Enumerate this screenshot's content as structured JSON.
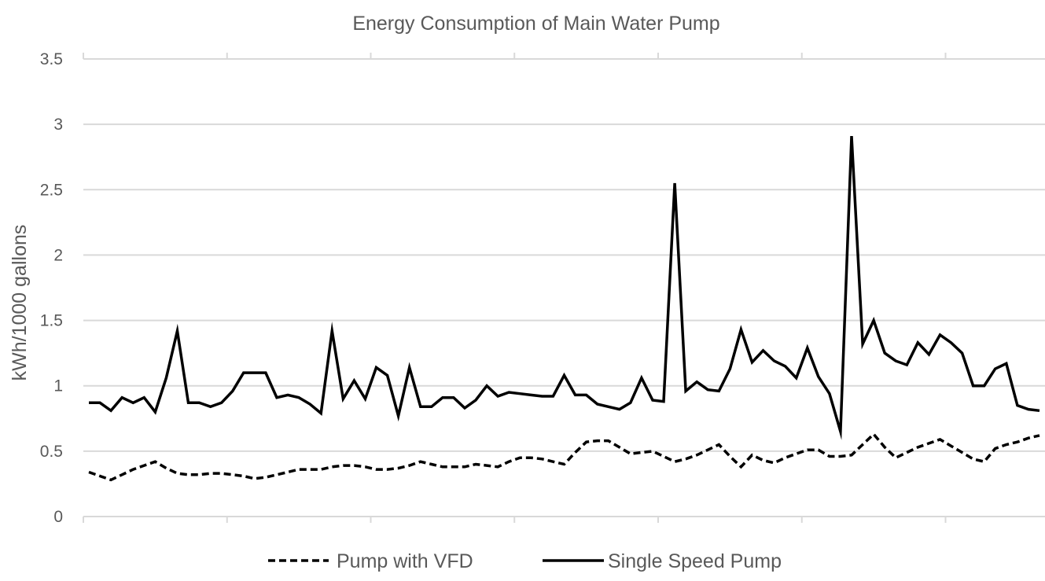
{
  "chart_data": {
    "type": "line",
    "title": "Energy Consumption of Main Water Pump",
    "xlabel": "",
    "ylabel": "kWh/1000 gallons",
    "ylim": [
      0,
      3.5
    ],
    "yticks": [
      "0",
      "0.5",
      "1",
      "1.5",
      "2",
      "2.5",
      "3",
      "3.5"
    ],
    "ytick_values": [
      0,
      0.5,
      1,
      1.5,
      2,
      2.5,
      3,
      3.5
    ],
    "x_count": 87,
    "x_major_tick_every": 13,
    "grid": true,
    "legend_position": "bottom",
    "series": [
      {
        "name": "Pump with VFD",
        "style": "dashed",
        "color": "#000000",
        "values": [
          0.34,
          0.31,
          0.28,
          0.32,
          0.36,
          0.39,
          0.42,
          0.37,
          0.33,
          0.32,
          0.32,
          0.33,
          0.33,
          0.32,
          0.31,
          0.29,
          0.3,
          0.32,
          0.34,
          0.36,
          0.36,
          0.36,
          0.38,
          0.39,
          0.39,
          0.38,
          0.36,
          0.36,
          0.37,
          0.39,
          0.42,
          0.4,
          0.38,
          0.38,
          0.38,
          0.4,
          0.39,
          0.38,
          0.42,
          0.45,
          0.45,
          0.44,
          0.42,
          0.4,
          0.49,
          0.57,
          0.58,
          0.58,
          0.53,
          0.48,
          0.49,
          0.5,
          0.46,
          0.42,
          0.44,
          0.47,
          0.51,
          0.55,
          0.46,
          0.38,
          0.47,
          0.43,
          0.41,
          0.45,
          0.48,
          0.51,
          0.51,
          0.46,
          0.46,
          0.47,
          0.55,
          0.63,
          0.53,
          0.45,
          0.49,
          0.53,
          0.56,
          0.59,
          0.54,
          0.49,
          0.44,
          0.42,
          0.52,
          0.55,
          0.57,
          0.6,
          0.62
        ]
      },
      {
        "name": "Single Speed Pump",
        "style": "solid",
        "color": "#000000",
        "values": [
          0.87,
          0.87,
          0.81,
          0.91,
          0.87,
          0.91,
          0.8,
          1.06,
          1.42,
          0.87,
          0.87,
          0.84,
          0.87,
          0.96,
          1.1,
          1.1,
          1.1,
          0.91,
          0.93,
          0.91,
          0.86,
          0.79,
          1.42,
          0.9,
          1.04,
          0.9,
          1.14,
          1.08,
          0.77,
          1.14,
          0.84,
          0.84,
          0.91,
          0.91,
          0.83,
          0.89,
          1.0,
          0.92,
          0.95,
          0.94,
          0.93,
          0.92,
          0.92,
          1.08,
          0.93,
          0.93,
          0.86,
          0.84,
          0.82,
          0.87,
          1.06,
          0.89,
          0.88,
          2.55,
          0.96,
          1.03,
          0.97,
          0.96,
          1.13,
          1.43,
          1.18,
          1.27,
          1.19,
          1.15,
          1.06,
          1.29,
          1.07,
          0.94,
          0.65,
          2.91,
          1.32,
          1.5,
          1.25,
          1.19,
          1.16,
          1.33,
          1.24,
          1.39,
          1.33,
          1.25,
          1.0,
          1.0,
          1.13,
          1.17,
          0.85,
          0.82,
          0.81
        ]
      }
    ]
  }
}
